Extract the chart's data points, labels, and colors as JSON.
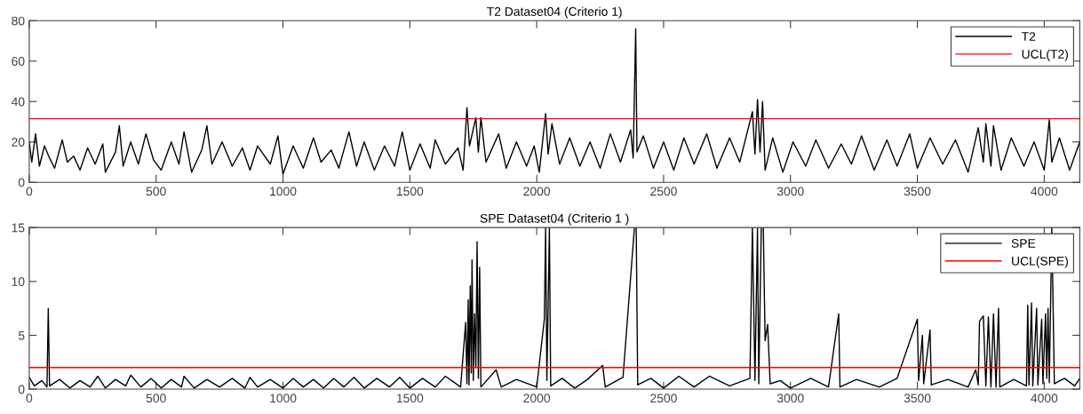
{
  "chart_data": [
    {
      "type": "line",
      "title": "T2 Dataset04 (Criterio 1)",
      "xlim": [
        0,
        4140
      ],
      "ylim": [
        0,
        80
      ],
      "xticks": [
        0,
        500,
        1000,
        1500,
        2000,
        2500,
        3000,
        3500,
        4000
      ],
      "yticks": [
        0,
        20,
        40,
        60,
        80
      ],
      "grid": false,
      "legend": "top right",
      "series": [
        {
          "name": "T2",
          "color": "#000000",
          "x": [
            0,
            10,
            25,
            40,
            60,
            80,
            100,
            130,
            150,
            175,
            200,
            230,
            260,
            290,
            300,
            340,
            355,
            370,
            400,
            430,
            460,
            490,
            520,
            560,
            590,
            610,
            640,
            680,
            700,
            720,
            760,
            800,
            840,
            870,
            900,
            950,
            980,
            1000,
            1040,
            1080,
            1120,
            1150,
            1190,
            1220,
            1260,
            1290,
            1320,
            1360,
            1400,
            1440,
            1470,
            1500,
            1540,
            1580,
            1600,
            1640,
            1690,
            1710,
            1725,
            1735,
            1760,
            1770,
            1780,
            1800,
            1850,
            1880,
            1920,
            1960,
            1990,
            2010,
            2035,
            2045,
            2060,
            2090,
            2130,
            2170,
            2210,
            2250,
            2290,
            2330,
            2370,
            2380,
            2390,
            2395,
            2420,
            2460,
            2500,
            2540,
            2580,
            2620,
            2670,
            2710,
            2760,
            2800,
            2850,
            2860,
            2870,
            2880,
            2890,
            2900,
            2930,
            2970,
            3010,
            3060,
            3100,
            3150,
            3200,
            3240,
            3280,
            3330,
            3380,
            3420,
            3470,
            3500,
            3550,
            3600,
            3650,
            3700,
            3740,
            3760,
            3770,
            3790,
            3800,
            3830,
            3870,
            3920,
            3960,
            4000,
            4020,
            4030,
            4060,
            4100,
            4140
          ],
          "values": [
            20,
            10,
            24,
            8,
            18,
            12,
            7,
            21,
            10,
            13,
            6,
            17,
            9,
            19,
            5,
            15,
            28,
            8,
            20,
            9,
            24,
            11,
            6,
            20,
            9,
            25,
            5,
            16,
            28,
            9,
            20,
            8,
            17,
            6,
            18,
            9,
            23,
            4,
            18,
            7,
            22,
            10,
            16,
            7,
            25,
            8,
            20,
            6,
            18,
            8,
            25,
            6,
            19,
            7,
            21,
            9,
            17,
            6,
            37,
            18,
            32,
            15,
            32,
            10,
            24,
            7,
            20,
            8,
            18,
            5,
            34,
            14,
            29,
            9,
            22,
            8,
            20,
            7,
            24,
            10,
            26,
            12,
            76,
            15,
            23,
            7,
            20,
            6,
            22,
            9,
            24,
            7,
            22,
            10,
            35,
            14,
            41,
            15,
            40,
            6,
            22,
            5,
            20,
            8,
            21,
            7,
            19,
            9,
            23,
            6,
            21,
            8,
            24,
            7,
            22,
            9,
            21,
            5,
            27,
            10,
            29,
            8,
            28,
            6,
            22,
            8,
            20,
            6,
            31,
            10,
            22,
            6,
            20
          ]
        },
        {
          "name": "UCL(T2)",
          "color": "#ff0000",
          "x": [
            0,
            4140
          ],
          "values": [
            31.5,
            31.5
          ]
        }
      ]
    },
    {
      "type": "line",
      "title": "SPE Dataset04 (Criterio 1 )",
      "xlim": [
        0,
        4140
      ],
      "ylim": [
        0,
        15
      ],
      "xticks": [
        0,
        500,
        1000,
        1500,
        2000,
        2500,
        3000,
        3500,
        4000
      ],
      "yticks": [
        0,
        5,
        10,
        15
      ],
      "grid": false,
      "legend": "top right",
      "series": [
        {
          "name": "SPE",
          "color": "#000000",
          "x": [
            0,
            20,
            50,
            70,
            75,
            80,
            120,
            160,
            200,
            240,
            270,
            300,
            340,
            380,
            400,
            440,
            480,
            520,
            560,
            600,
            610,
            650,
            700,
            750,
            800,
            850,
            870,
            900,
            950,
            1000,
            1040,
            1080,
            1120,
            1160,
            1200,
            1240,
            1280,
            1320,
            1370,
            1420,
            1460,
            1500,
            1550,
            1600,
            1640,
            1700,
            1720,
            1725,
            1730,
            1733,
            1738,
            1742,
            1745,
            1750,
            1755,
            1760,
            1765,
            1770,
            1775,
            1780,
            1840,
            1860,
            1920,
            2000,
            2030,
            2035,
            2040,
            2050,
            2055,
            2100,
            2150,
            2200,
            2260,
            2270,
            2340,
            2385,
            2392,
            2398,
            2450,
            2500,
            2560,
            2620,
            2680,
            2760,
            2840,
            2850,
            2860,
            2870,
            2875,
            2885,
            2893,
            2900,
            2910,
            2920,
            2960,
            3000,
            3080,
            3150,
            3190,
            3195,
            3260,
            3350,
            3420,
            3500,
            3505,
            3520,
            3525,
            3550,
            3555,
            3620,
            3700,
            3730,
            3740,
            3745,
            3760,
            3770,
            3780,
            3790,
            3800,
            3810,
            3820,
            3825,
            3880,
            3930,
            3935,
            3940,
            3950,
            3955,
            3970,
            3975,
            3990,
            3995,
            4005,
            4010,
            4015,
            4020,
            4030,
            4040,
            4080,
            4120,
            4140
          ],
          "values": [
            1.1,
            0.3,
            0.8,
            0.2,
            7.5,
            0.3,
            0.9,
            0.1,
            0.8,
            0.2,
            1.2,
            0.1,
            0.9,
            0.3,
            1.3,
            0.2,
            1.0,
            0.1,
            0.9,
            0.2,
            1.2,
            0.1,
            0.9,
            0.2,
            1.0,
            0.1,
            1.1,
            0.2,
            0.9,
            0.1,
            1.0,
            0.2,
            0.9,
            0.1,
            1.0,
            0.2,
            1.1,
            0.1,
            1.0,
            0.2,
            1.1,
            0.1,
            1.0,
            0.2,
            1.2,
            0.2,
            6.2,
            0.5,
            8.3,
            0.4,
            9.6,
            1.5,
            12,
            0.8,
            7,
            2,
            13.7,
            1.0,
            11.3,
            0.2,
            1.8,
            0.2,
            0.9,
            0.2,
            6.5,
            15,
            0.8,
            15,
            0.3,
            1.0,
            0.1,
            0.9,
            2.2,
            0.2,
            1.1,
            15,
            15,
            0.4,
            1.0,
            0.1,
            1.2,
            0.2,
            1.2,
            0.3,
            1.0,
            15,
            0.8,
            15,
            0.5,
            15,
            15,
            4.5,
            6.0,
            0.5,
            0.8,
            0.1,
            1.0,
            0.2,
            7.0,
            0.2,
            0.9,
            0.2,
            1.0,
            6.5,
            0.8,
            5.0,
            0.5,
            5.5,
            0.4,
            0.9,
            0.2,
            1.8,
            0.4,
            6.3,
            6.8,
            0.3,
            6.7,
            0.2,
            7.0,
            0.2,
            7.5,
            0.2,
            0.9,
            0.3,
            7.8,
            0.4,
            8.0,
            0.3,
            7.5,
            0.4,
            6.5,
            0.5,
            7.0,
            1.0,
            7.5,
            0.6,
            15,
            0.5,
            1.0,
            0.3,
            1.0
          ]
        },
        {
          "name": "UCL(SPE)",
          "color": "#ff0000",
          "x": [
            0,
            4140
          ],
          "values": [
            2,
            2
          ]
        }
      ]
    }
  ]
}
